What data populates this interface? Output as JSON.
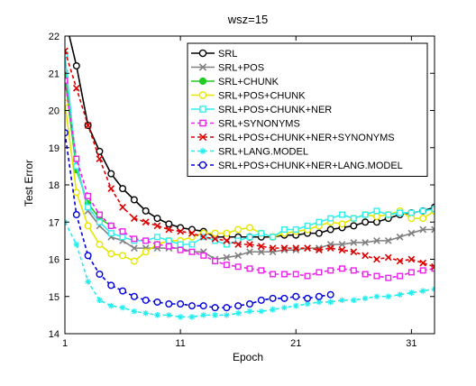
{
  "chart_data": {
    "type": "line",
    "title": "wsz=15",
    "xlabel": "Epoch",
    "ylabel": "Test Error",
    "xlim": [
      1,
      33
    ],
    "ylim": [
      14,
      22
    ],
    "xticks": [
      1,
      11,
      21,
      31
    ],
    "yticks": [
      14,
      15,
      16,
      17,
      18,
      19,
      20,
      21,
      22
    ],
    "grid": false,
    "legend_position": "top-right",
    "series": [
      {
        "name": "SRL",
        "color": "#000000",
        "marker": "circle",
        "dash": "solid",
        "x": [
          1,
          2,
          3,
          4,
          5,
          6,
          7,
          8,
          9,
          10,
          11,
          12,
          13,
          14,
          15,
          16,
          17,
          18,
          19,
          20,
          21,
          22,
          23,
          24,
          25,
          26,
          27,
          28,
          29,
          30,
          31,
          32,
          33
        ],
        "y": [
          22.5,
          21.2,
          19.6,
          18.9,
          18.3,
          17.9,
          17.6,
          17.3,
          17.1,
          16.95,
          16.85,
          16.8,
          16.75,
          16.6,
          16.6,
          16.6,
          16.6,
          16.6,
          16.6,
          16.65,
          16.65,
          16.7,
          16.7,
          16.8,
          16.85,
          16.9,
          17.0,
          17.0,
          17.1,
          17.2,
          17.25,
          17.3,
          17.4
        ]
      },
      {
        "name": "SRL+POS",
        "color": "#808080",
        "marker": "x",
        "dash": "solid",
        "x": [
          1,
          2,
          3,
          4,
          5,
          6,
          7,
          8,
          9,
          10,
          11,
          12,
          13,
          14,
          15,
          16,
          17,
          18,
          19,
          20,
          21,
          22,
          23,
          24,
          25,
          26,
          27,
          28,
          29,
          30,
          31,
          32,
          33
        ],
        "y": [
          21.0,
          18.6,
          17.3,
          16.9,
          16.6,
          16.5,
          16.3,
          16.3,
          16.3,
          16.3,
          16.3,
          16.2,
          16.2,
          16.0,
          16.05,
          16.1,
          16.2,
          16.2,
          16.2,
          16.25,
          16.25,
          16.3,
          16.3,
          16.4,
          16.4,
          16.45,
          16.45,
          16.5,
          16.5,
          16.6,
          16.7,
          16.8,
          16.8
        ]
      },
      {
        "name": "SRL+CHUNK",
        "color": "#22cc22",
        "marker": "circle-filled",
        "dash": "solid",
        "x": [
          1,
          2,
          3,
          4,
          5
        ],
        "y": [
          20.9,
          18.4,
          17.5,
          17.1,
          16.9
        ]
      },
      {
        "name": "SRL+POS+CHUNK",
        "color": "#e6e600",
        "marker": "circle",
        "dash": "solid",
        "x": [
          1,
          2,
          3,
          4,
          5,
          6,
          7,
          8,
          9,
          10,
          11,
          12,
          13,
          14,
          15,
          16,
          17,
          18,
          19,
          20,
          21,
          22,
          23,
          24,
          25,
          26,
          27,
          28,
          29,
          30,
          31,
          32,
          33
        ],
        "y": [
          20.2,
          17.8,
          16.9,
          16.4,
          16.15,
          16.1,
          15.95,
          16.2,
          16.4,
          16.5,
          16.5,
          16.6,
          16.7,
          16.7,
          16.7,
          16.8,
          16.85,
          16.7,
          16.6,
          16.7,
          16.75,
          16.8,
          16.9,
          17.0,
          16.95,
          17.1,
          17.2,
          17.15,
          17.2,
          17.3,
          17.1,
          17.1,
          17.3
        ]
      },
      {
        "name": "SRL+POS+CHUNK+NER",
        "color": "#33eeee",
        "marker": "square",
        "dash": "solid",
        "x": [
          1,
          2,
          3,
          4,
          5,
          6,
          7,
          8,
          9,
          10,
          11,
          12,
          13,
          14,
          15,
          16,
          17,
          18,
          19,
          20,
          21,
          22,
          23,
          24,
          25,
          26,
          27,
          28,
          29,
          30,
          31,
          32,
          33
        ],
        "y": [
          21.5,
          18.5,
          17.4,
          17.0,
          16.7,
          16.6,
          16.5,
          16.5,
          16.6,
          16.5,
          16.4,
          16.4,
          16.6,
          16.5,
          16.4,
          16.5,
          16.6,
          16.7,
          16.6,
          16.8,
          16.8,
          16.9,
          17.0,
          17.1,
          17.2,
          17.1,
          17.2,
          17.3,
          17.2,
          17.25,
          17.25,
          17.3,
          17.35
        ]
      },
      {
        "name": "SRL+SYNONYMS",
        "color": "#ee22ee",
        "marker": "square",
        "dash": "dashed",
        "x": [
          1,
          2,
          3,
          4,
          5,
          6,
          7,
          8,
          9,
          10,
          11,
          12,
          13,
          14,
          15,
          16,
          17,
          18,
          19,
          20,
          21,
          22,
          23,
          24,
          25,
          26,
          27,
          28,
          29,
          30,
          31,
          32,
          33
        ],
        "y": [
          20.8,
          18.7,
          17.7,
          17.2,
          16.9,
          16.75,
          16.55,
          16.5,
          16.4,
          16.35,
          16.25,
          16.2,
          16.1,
          15.95,
          15.85,
          15.8,
          15.75,
          15.7,
          15.6,
          15.6,
          15.6,
          15.55,
          15.65,
          15.7,
          15.75,
          15.7,
          15.6,
          15.55,
          15.5,
          15.55,
          15.65,
          15.7,
          15.75
        ]
      },
      {
        "name": "SRL+POS+CHUNK+NER+SYNONYMS",
        "color": "#dd0000",
        "marker": "x",
        "dash": "dashed",
        "x": [
          1,
          2,
          3,
          4,
          5,
          6,
          7,
          8,
          9,
          10,
          11,
          12,
          13,
          14,
          15,
          16,
          17,
          18,
          19,
          20,
          21,
          22,
          23,
          24,
          25,
          26,
          27,
          28,
          29,
          30,
          31,
          32,
          33
        ],
        "y": [
          21.6,
          20.6,
          19.6,
          18.7,
          17.9,
          17.4,
          17.1,
          17.0,
          16.9,
          16.8,
          16.75,
          16.7,
          16.6,
          16.55,
          16.5,
          16.4,
          16.4,
          16.35,
          16.3,
          16.3,
          16.3,
          16.3,
          16.25,
          16.3,
          16.25,
          16.2,
          16.1,
          16.0,
          16.05,
          15.95,
          16.0,
          15.9,
          15.8
        ]
      },
      {
        "name": "SRL+LANG.MODEL",
        "color": "#22eeee",
        "marker": "asterisk",
        "dash": "dashed",
        "x": [
          1,
          2,
          3,
          4,
          5,
          6,
          7,
          8,
          9,
          10,
          11,
          12,
          13,
          14,
          15,
          16,
          17,
          18,
          19,
          20,
          21,
          22,
          23,
          24,
          25,
          26,
          27,
          28,
          29,
          30,
          31,
          32,
          33
        ],
        "y": [
          17.0,
          16.4,
          15.4,
          14.9,
          14.75,
          14.7,
          14.6,
          14.55,
          14.5,
          14.5,
          14.45,
          14.45,
          14.5,
          14.5,
          14.5,
          14.55,
          14.6,
          14.6,
          14.65,
          14.7,
          14.75,
          14.8,
          14.85,
          14.85,
          14.9,
          14.9,
          14.95,
          15.0,
          15.0,
          15.05,
          15.1,
          15.15,
          15.2
        ]
      },
      {
        "name": "SRL+POS+CHUNK+NER+LANG.MODEL",
        "color": "#0000dd",
        "marker": "circle",
        "dash": "dashed",
        "x": [
          1,
          2,
          3,
          4,
          5,
          6,
          7,
          8,
          9,
          10,
          11,
          12,
          13,
          14,
          15,
          16,
          17,
          18,
          19,
          20,
          21,
          22,
          23,
          24
        ],
        "y": [
          19.4,
          17.2,
          16.1,
          15.6,
          15.3,
          15.15,
          15.0,
          14.9,
          14.85,
          14.8,
          14.8,
          14.75,
          14.75,
          14.7,
          14.7,
          14.75,
          14.8,
          14.9,
          14.95,
          14.95,
          15.0,
          14.95,
          15.0,
          15.05
        ]
      }
    ]
  }
}
